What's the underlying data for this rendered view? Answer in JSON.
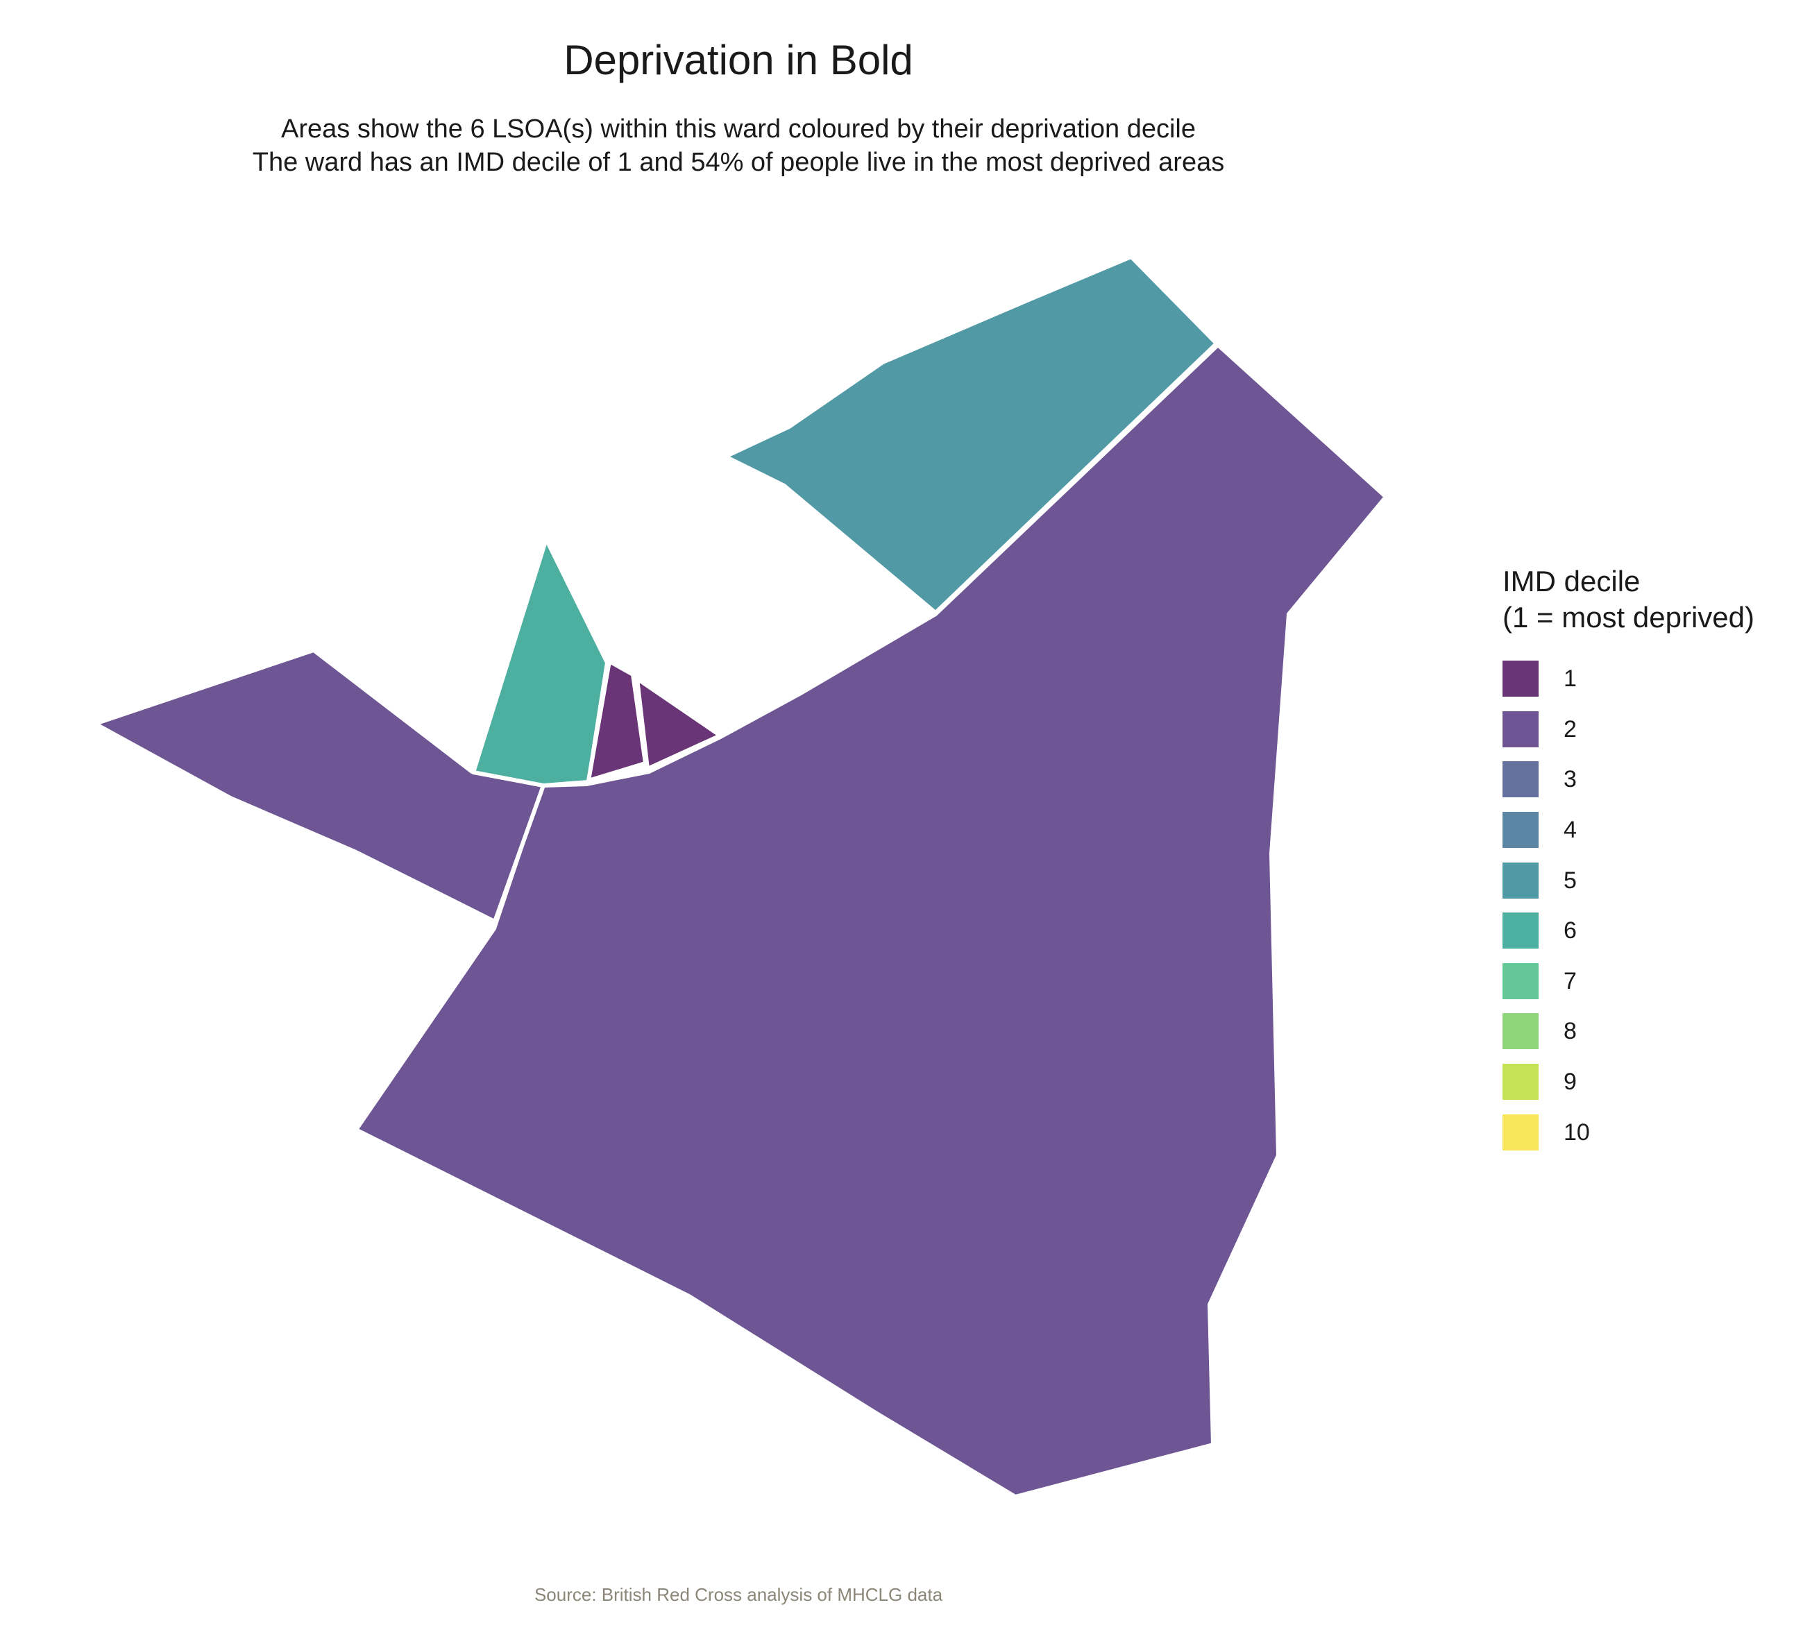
{
  "title": "Deprivation in Bold",
  "subtitle_line1": "Areas show the 6 LSOA(s) within this ward coloured by their deprivation decile",
  "subtitle_line2": "The ward has an IMD decile of 1 and 54% of people live in the most deprived areas",
  "caption": "Source: British Red Cross analysis of MHCLG data",
  "legend": {
    "title_line1": "IMD decile",
    "title_line2": "(1 = most deprived)",
    "items": [
      {
        "label": "1",
        "color": "#6a3576"
      },
      {
        "label": "2",
        "color": "#6e5593"
      },
      {
        "label": "3",
        "color": "#65729f"
      },
      {
        "label": "4",
        "color": "#5b87a5"
      },
      {
        "label": "5",
        "color": "#519aa5"
      },
      {
        "label": "6",
        "color": "#4daf9f"
      },
      {
        "label": "7",
        "color": "#63c797"
      },
      {
        "label": "8",
        "color": "#8fd67b"
      },
      {
        "label": "9",
        "color": "#c5e257"
      },
      {
        "label": "10",
        "color": "#f7e65a"
      }
    ]
  },
  "map": {
    "lsoa_count": 6,
    "areas": [
      {
        "name": "lsoa-large-south",
        "decile": 2
      },
      {
        "name": "lsoa-west-arm",
        "decile": 2
      },
      {
        "name": "lsoa-northeast",
        "decile": 5
      },
      {
        "name": "lsoa-north-wedge",
        "decile": 6
      },
      {
        "name": "lsoa-small-a",
        "decile": 1
      },
      {
        "name": "lsoa-small-b",
        "decile": 1
      }
    ]
  }
}
